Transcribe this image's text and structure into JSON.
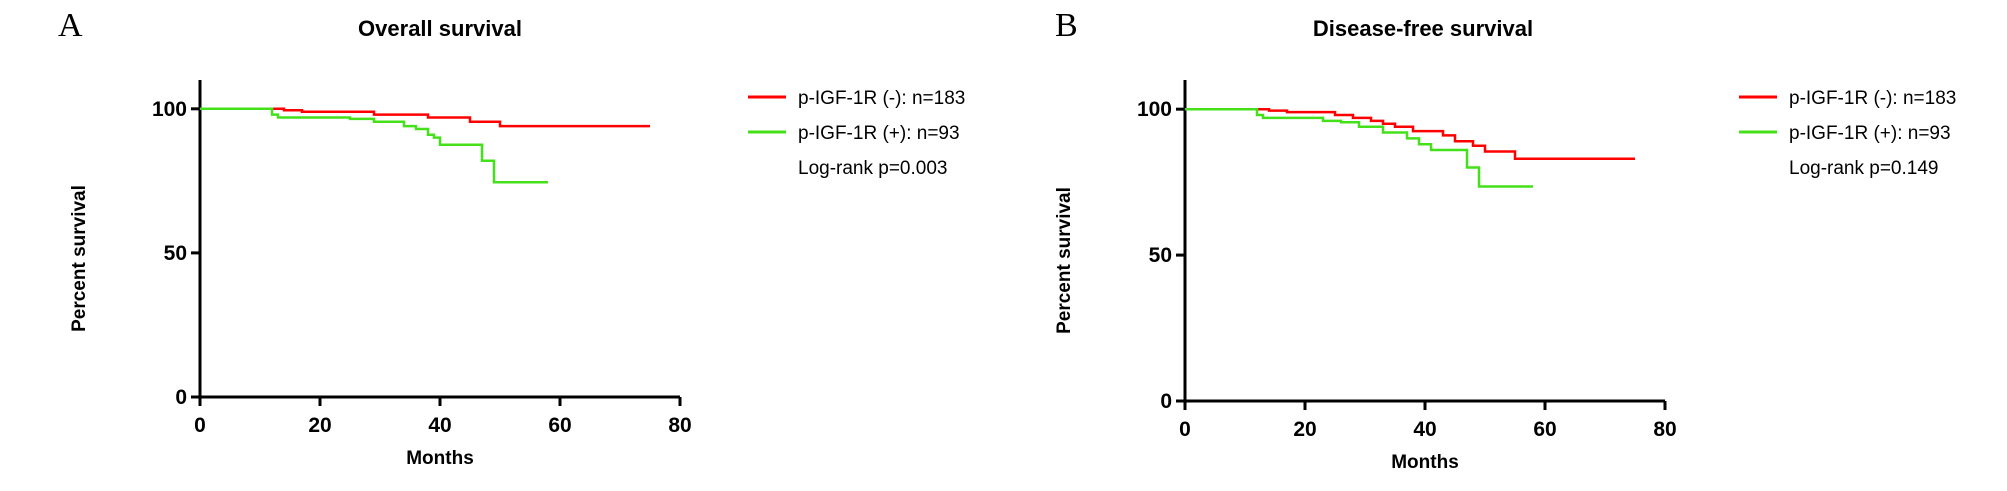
{
  "chart_data": [
    {
      "type": "line",
      "panel": "A",
      "title": "Overall survival",
      "xlabel": "Months",
      "ylabel": "Percent survival",
      "xlim": [
        0,
        80
      ],
      "ylim": [
        0,
        110
      ],
      "xticks": [
        0,
        20,
        40,
        60,
        80
      ],
      "yticks": [
        0,
        50,
        100
      ],
      "grid": false,
      "legend_position": "right",
      "series": [
        {
          "name": "p-IGF-1R (-): n=183",
          "color": "#ff0000",
          "x": [
            0,
            14,
            14,
            17,
            17,
            29,
            29,
            38,
            38,
            45,
            45,
            50,
            50,
            75
          ],
          "y": [
            100,
            100,
            99.5,
            99.5,
            99,
            99,
            98,
            98,
            97,
            97,
            95.5,
            95.5,
            94,
            94
          ]
        },
        {
          "name": "p-IGF-1R (+): n=93",
          "color": "#44e01a",
          "x": [
            0,
            12,
            12,
            13,
            13,
            25,
            25,
            29,
            29,
            34,
            34,
            36,
            36,
            38,
            38,
            39,
            39,
            40,
            40,
            47,
            47,
            49,
            49,
            58
          ],
          "y": [
            100,
            100,
            98,
            98,
            97,
            97,
            96.5,
            96.5,
            95.5,
            95.5,
            94,
            94,
            93,
            93,
            91,
            91,
            90,
            90,
            87.5,
            87.5,
            82,
            82,
            74.5,
            74.5
          ]
        }
      ],
      "annotations": [
        "Log-rank p=0.003"
      ]
    },
    {
      "type": "line",
      "panel": "B",
      "title": "Disease-free survival",
      "xlabel": "Months",
      "ylabel": "Percent survival",
      "xlim": [
        0,
        80
      ],
      "ylim": [
        0,
        110
      ],
      "xticks": [
        0,
        20,
        40,
        60,
        80
      ],
      "yticks": [
        0,
        50,
        100
      ],
      "grid": false,
      "legend_position": "right",
      "series": [
        {
          "name": "p-IGF-1R (-): n=183",
          "color": "#ff0000",
          "x": [
            0,
            14,
            14,
            17,
            17,
            25,
            25,
            28,
            28,
            31,
            31,
            33,
            33,
            35,
            35,
            38,
            38,
            43,
            43,
            45,
            45,
            48,
            48,
            50,
            50,
            55,
            55,
            75
          ],
          "y": [
            100,
            100,
            99.5,
            99.5,
            99,
            99,
            98,
            98,
            97,
            97,
            96,
            96,
            95,
            95,
            94,
            94,
            92.5,
            92.5,
            91,
            91,
            89,
            89,
            87.5,
            87.5,
            85.5,
            85.5,
            83,
            83
          ]
        },
        {
          "name": "p-IGF-1R (+): n=93",
          "color": "#44e01a",
          "x": [
            0,
            12,
            12,
            13,
            13,
            23,
            23,
            26,
            26,
            29,
            29,
            33,
            33,
            37,
            37,
            39,
            39,
            41,
            41,
            47,
            47,
            49,
            49,
            58
          ],
          "y": [
            100,
            100,
            98,
            98,
            97,
            97,
            96,
            96,
            95.5,
            95.5,
            94,
            94,
            92,
            92,
            90,
            90,
            88,
            88,
            86,
            86,
            80,
            80,
            73.5,
            73.5
          ]
        }
      ],
      "annotations": [
        "Log-rank p=0.149"
      ]
    }
  ]
}
